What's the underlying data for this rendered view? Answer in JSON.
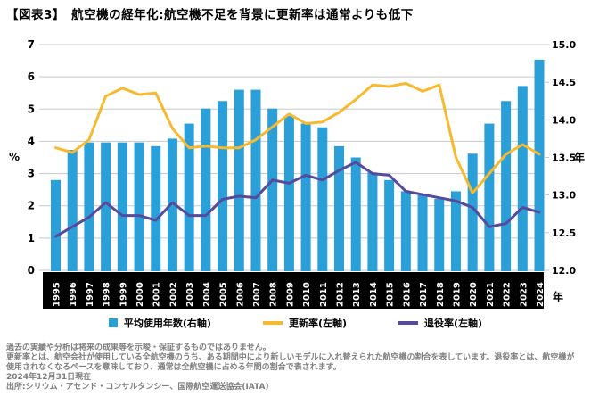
{
  "title": "【図表3】　航空機の経年化:航空機不足を背景に更新率は通常よりも低下",
  "chart_data": {
    "type": "bar+line combo",
    "categories": [
      "1995",
      "1996",
      "1997",
      "1998",
      "1999",
      "2000",
      "2001",
      "2002",
      "2003",
      "2004",
      "2005",
      "2006",
      "2007",
      "2008",
      "2009",
      "2010",
      "2011",
      "2012",
      "2013",
      "2014",
      "2015",
      "2016",
      "2017",
      "2018",
      "2019",
      "2020",
      "2021",
      "2022",
      "2023",
      "2024"
    ],
    "series": [
      {
        "name": "平均使用年数(右軸)",
        "type": "bar",
        "axis": "right",
        "color": "#2B9FD8",
        "values": [
          13.2,
          13.6,
          13.7,
          13.7,
          13.7,
          13.7,
          13.65,
          13.75,
          13.95,
          14.15,
          14.25,
          14.4,
          14.4,
          14.15,
          14.05,
          13.95,
          13.9,
          13.65,
          13.5,
          13.3,
          13.2,
          13.05,
          13.0,
          12.95,
          13.05,
          13.55,
          13.95,
          14.25,
          14.45,
          14.8
        ]
      },
      {
        "name": "更新率(左軸)",
        "type": "line",
        "axis": "left",
        "color": "#F7BA2E",
        "values": [
          3.8,
          3.65,
          4.05,
          5.4,
          5.65,
          5.45,
          5.5,
          4.4,
          3.8,
          3.85,
          3.8,
          3.8,
          4.05,
          4.45,
          4.85,
          4.55,
          4.6,
          4.9,
          5.3,
          5.75,
          5.7,
          5.8,
          5.55,
          5.75,
          3.5,
          2.4,
          3.0,
          3.6,
          3.9,
          3.6
        ]
      },
      {
        "name": "退役率(左軸)",
        "type": "line",
        "axis": "left",
        "color": "#564A9C",
        "values": [
          1.05,
          1.35,
          1.65,
          2.1,
          1.7,
          1.7,
          1.55,
          2.1,
          1.7,
          1.7,
          2.2,
          2.3,
          2.25,
          2.8,
          2.7,
          2.95,
          2.8,
          3.1,
          3.35,
          3.0,
          2.95,
          2.45,
          2.35,
          2.25,
          2.15,
          1.95,
          1.35,
          1.45,
          1.95,
          1.8
        ]
      }
    ],
    "left_axis": {
      "label": "%",
      "min": 0,
      "max": 7,
      "ticks": [
        "0",
        "1",
        "2",
        "3",
        "4",
        "5",
        "6",
        "7"
      ]
    },
    "right_axis": {
      "label": "年",
      "min": 12.0,
      "max": 15.0,
      "ticks": [
        "12.0",
        "12.5",
        "13.0",
        "13.5",
        "14.0",
        "14.5",
        "15.0"
      ]
    },
    "x_axis": {
      "unit": "年",
      "label_color": "#ffffff",
      "strip_color": "#000000"
    },
    "grid": {
      "on": true,
      "color": "#C8C8C8"
    },
    "legend_position": "bottom"
  },
  "footnotes": [
    "過去の実績や分析は将来の成果等を示唆・保証するものではありません。",
    "更新率とは、航空会社が使用している全航空機のうち、ある期間中により新しいモデルに入れ替えられた航空機の割合を表しています。退役率とは、航空機が",
    "使用されなくなるペースを意味しており、通常は全航空機に占める年間の割合で表されます。",
    "2024年12月31日現在",
    "出所:シリウム・アセンド・コンサルタンシー、国際航空運送協会(IATA)"
  ]
}
